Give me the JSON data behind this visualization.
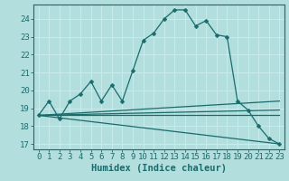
{
  "xlabel": "Humidex (Indice chaleur)",
  "background_color": "#b2dede",
  "grid_color": "#c8ecec",
  "line_color": "#1a6b6b",
  "spine_color": "#1a6b6b",
  "xlim": [
    -0.5,
    23.5
  ],
  "ylim": [
    16.7,
    24.8
  ],
  "yticks": [
    17,
    18,
    19,
    20,
    21,
    22,
    23,
    24
  ],
  "xticks": [
    0,
    1,
    2,
    3,
    4,
    5,
    6,
    7,
    8,
    9,
    10,
    11,
    12,
    13,
    14,
    15,
    16,
    17,
    18,
    19,
    20,
    21,
    22,
    23
  ],
  "main_line": {
    "x": [
      0,
      1,
      2,
      3,
      4,
      5,
      6,
      7,
      8,
      9,
      10,
      11,
      12,
      13,
      14,
      15,
      16,
      17,
      18,
      19,
      20,
      21,
      22,
      23
    ],
    "y": [
      18.6,
      19.4,
      18.4,
      19.4,
      19.8,
      20.5,
      19.4,
      20.3,
      19.4,
      21.1,
      22.8,
      23.2,
      24.0,
      24.5,
      24.5,
      23.6,
      23.9,
      23.1,
      23.0,
      19.4,
      18.9,
      18.0,
      17.3,
      17.0
    ]
  },
  "straight_lines": [
    {
      "x0": 0,
      "y0": 18.6,
      "x1": 23,
      "y1": 18.6
    },
    {
      "x0": 0,
      "y0": 18.6,
      "x1": 23,
      "y1": 19.4
    },
    {
      "x0": 0,
      "y0": 18.6,
      "x1": 23,
      "y1": 18.9
    },
    {
      "x0": 0,
      "y0": 18.6,
      "x1": 23,
      "y1": 17.0
    }
  ],
  "tick_fontsize": 6.5,
  "xlabel_fontsize": 7.5,
  "linewidth": 0.9,
  "marker_size": 2.5
}
